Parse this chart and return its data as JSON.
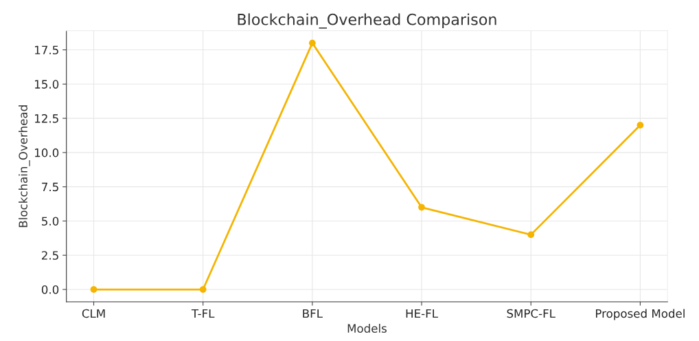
{
  "chart_data": {
    "type": "line",
    "title": "Blockchain_Overhead Comparison",
    "xlabel": "Models",
    "ylabel": "Blockchain_Overhead",
    "categories": [
      "CLM",
      "T-FL",
      "BFL",
      "HE-FL",
      "SMPC-FL",
      "Proposed Model"
    ],
    "series": [
      {
        "color": "#f5b400",
        "values": [
          0,
          0,
          18,
          6,
          4,
          12
        ]
      }
    ],
    "ylim": [
      -0.9,
      18.9
    ],
    "yticks": [
      {
        "value": 0,
        "label": "0.0"
      },
      {
        "value": 2.5,
        "label": "2.5"
      },
      {
        "value": 5,
        "label": "5.0"
      },
      {
        "value": 7.5,
        "label": "7.5"
      },
      {
        "value": 10,
        "label": "10.0"
      },
      {
        "value": 12.5,
        "label": "12.5"
      },
      {
        "value": 15,
        "label": "15.0"
      },
      {
        "value": 17.5,
        "label": "17.5"
      }
    ],
    "grid": true,
    "marker": "circle",
    "line_style": "solid"
  }
}
